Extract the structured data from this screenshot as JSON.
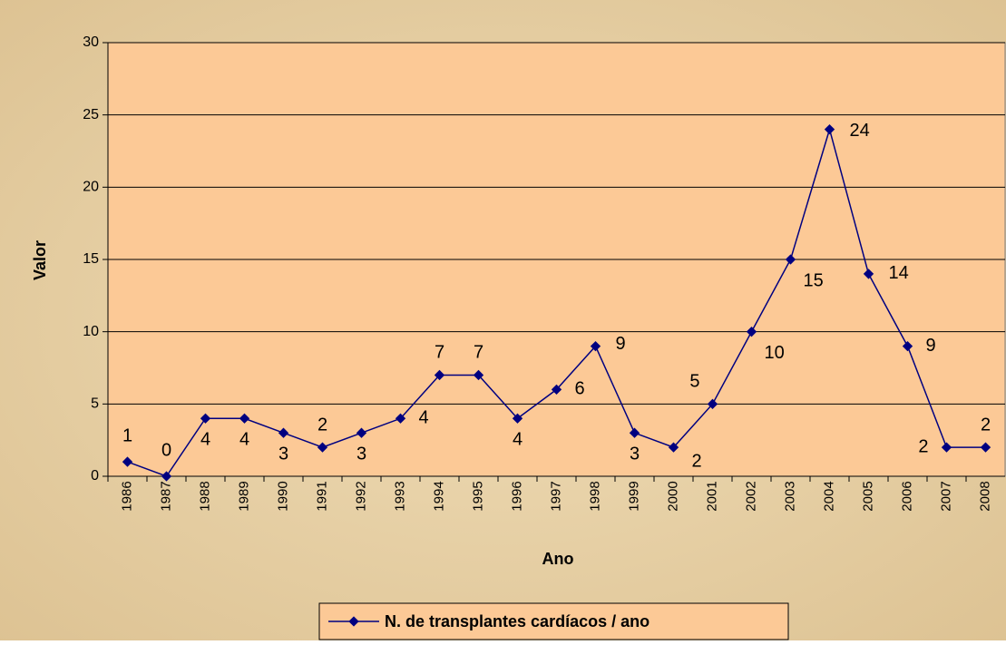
{
  "chart_data": {
    "type": "line",
    "x_label": "Ano",
    "y_label": "Valor",
    "categories": [
      "1986",
      "1987",
      "1988",
      "1989",
      "1990",
      "1991",
      "1992",
      "1993",
      "1994",
      "1995",
      "1996",
      "1997",
      "1998",
      "1999",
      "2000",
      "2001",
      "2002",
      "2003",
      "2004",
      "2005",
      "2006",
      "2007",
      "2008"
    ],
    "series": [
      {
        "name": "N. de transplantes cardíacos / ano",
        "color": "#000080",
        "values": [
          1,
          0,
          4,
          4,
          3,
          2,
          3,
          4,
          7,
          7,
          4,
          6,
          9,
          3,
          2,
          5,
          10,
          15,
          24,
          14,
          9,
          2,
          2
        ]
      }
    ],
    "ylim": [
      0,
      30
    ],
    "yticks": [
      0,
      5,
      10,
      15,
      20,
      25,
      30
    ],
    "grid": true,
    "legend": "bottom"
  }
}
